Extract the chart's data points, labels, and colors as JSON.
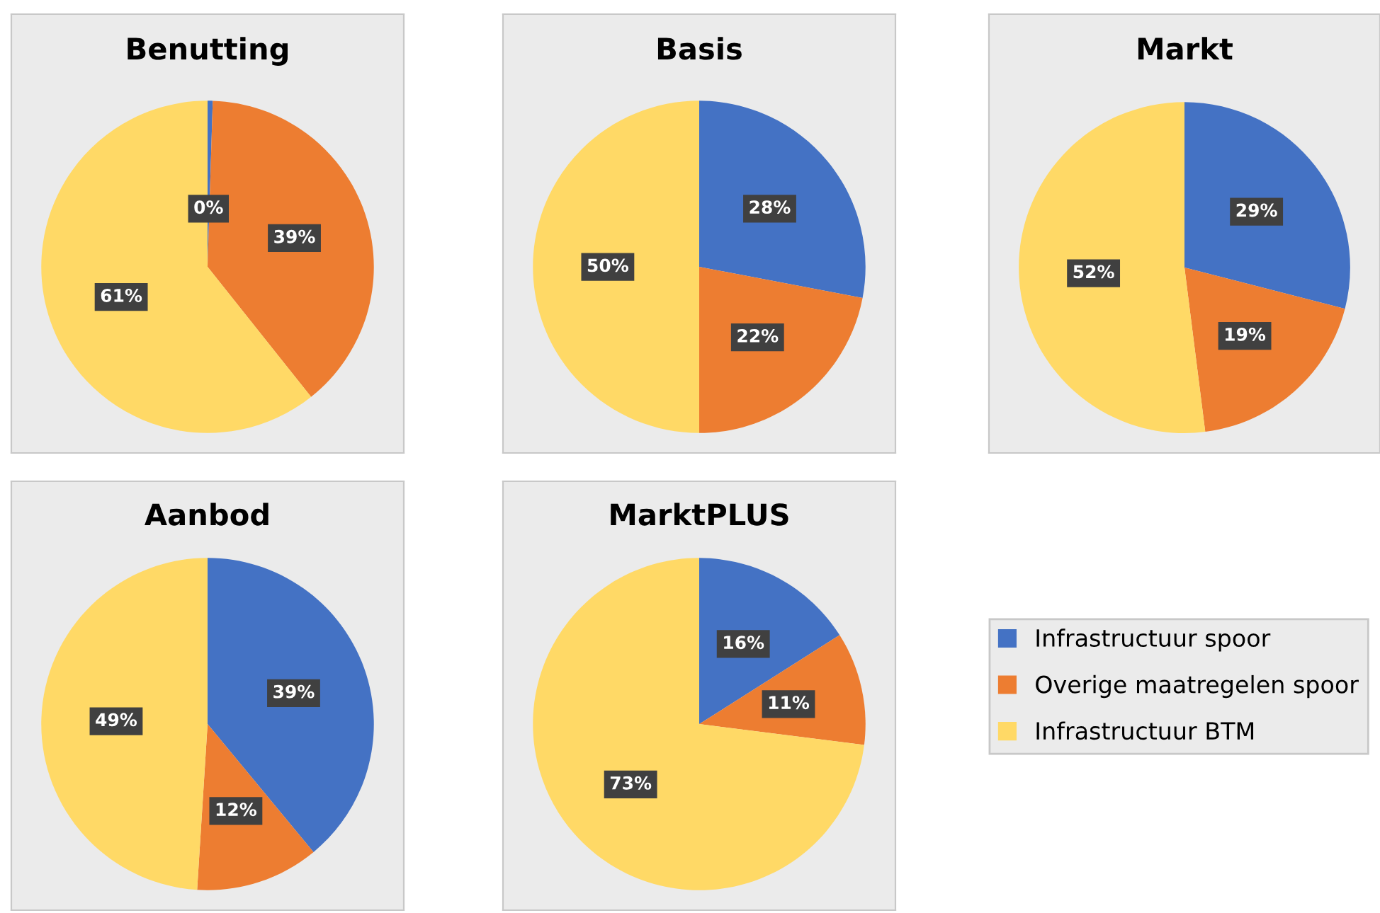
{
  "chart_data": [
    {
      "type": "pie",
      "title": "Benutting",
      "categories": [
        "Infrastructuur spoor",
        "Overige maatregelen spoor",
        "Infrastructuur BTM"
      ],
      "values": [
        0.5,
        39,
        61
      ],
      "value_labels": [
        "0%",
        "39%",
        "61%"
      ],
      "colors": [
        "#4472c4",
        "#ed7d31",
        "#ffd966"
      ],
      "legend": "bottom right"
    },
    {
      "type": "pie",
      "title": "Basis",
      "categories": [
        null,
        null,
        null
      ],
      "values": [
        28,
        22,
        50
      ],
      "value_labels": [
        "28%",
        "22%",
        "50%"
      ],
      "colors": [
        "#4472c4",
        "#ed7d31",
        "#ffd966"
      ]
    },
    {
      "type": "pie",
      "title": "Markt",
      "categories": [
        null,
        null,
        null
      ],
      "values": [
        29,
        19,
        52
      ],
      "value_labels": [
        "29%",
        "19%",
        "52%"
      ],
      "colors": [
        "#4472c4",
        "#ed7d31",
        "#ffd966"
      ]
    },
    {
      "type": "pie",
      "title": "Aanbod",
      "categories": [
        null,
        null,
        null
      ],
      "values": [
        39,
        12,
        49
      ],
      "value_labels": [
        "39%",
        "12%",
        "49%"
      ],
      "colors": [
        "#4472c4",
        "#ed7d31",
        "#ffd966"
      ]
    },
    {
      "type": "pie",
      "title": "MarktPLUS",
      "categories": [
        null,
        null,
        null
      ],
      "values": [
        16,
        11,
        73
      ],
      "value_labels": [
        "16%",
        "11%",
        "73%"
      ],
      "colors": [
        "#4472c4",
        "#ed7d31",
        "#ffd966"
      ]
    }
  ]
}
